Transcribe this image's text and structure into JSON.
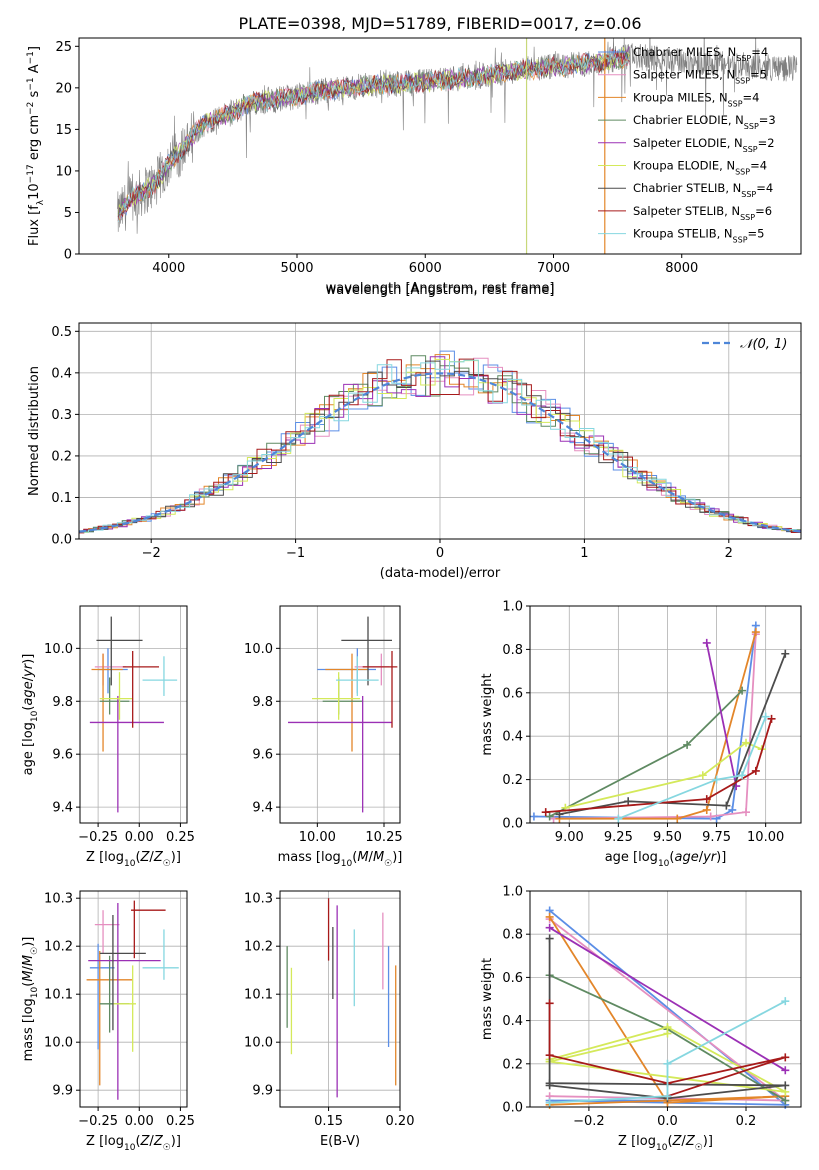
{
  "figure": {
    "title": "PLATE=0398, MJD=51789, FIBERID=0017, z=0.06"
  },
  "model_styles": [
    {
      "name": "Chabrier MILES",
      "nssp": 4,
      "color": "#5b8ee6"
    },
    {
      "name": "Salpeter MILES",
      "nssp": 5,
      "color": "#e58fc0"
    },
    {
      "name": "Kroupa MILES",
      "nssp": 4,
      "color": "#e3862a"
    },
    {
      "name": "Chabrier ELODIE",
      "nssp": 3,
      "color": "#5f8a62"
    },
    {
      "name": "Salpeter ELODIE",
      "nssp": 2,
      "color": "#9b30b5"
    },
    {
      "name": "Kroupa ELODIE",
      "nssp": 4,
      "color": "#d4e95a"
    },
    {
      "name": "Chabrier STELIB",
      "nssp": 4,
      "color": "#4c4c4c"
    },
    {
      "name": "Salpeter STELIB",
      "nssp": 6,
      "color": "#a71a1a"
    },
    {
      "name": "Kroupa STELIB",
      "nssp": 5,
      "color": "#86d7e0"
    }
  ],
  "chart_data": [
    {
      "id": "spectrum",
      "type": "line",
      "title": "PLATE=0398, MJD=51789, FIBERID=0017, z=0.06",
      "xlabel": "wavelength [Angstrom, rest frame]",
      "ylabel": "Flux [fλ10⁻¹⁷ erg cm⁻² s⁻¹ A⁻¹]",
      "xlim": [
        3300,
        8930
      ],
      "ylim": [
        0,
        26
      ],
      "xticks": [
        4000,
        5000,
        6000,
        7000,
        8000
      ],
      "yticks": [
        0,
        5,
        10,
        15,
        20,
        25
      ],
      "legend": "right",
      "continuum": {
        "x": [
          3600,
          3700,
          3800,
          3900,
          4000,
          4100,
          4200,
          4300,
          4400,
          4500,
          4600,
          4800,
          5000,
          5200,
          5400,
          5600,
          5800,
          6000,
          6200,
          6400,
          6600,
          6800,
          7000,
          7200,
          7400,
          7500,
          7600,
          7800,
          8000,
          8200,
          8400,
          8600,
          8900
        ],
        "y": [
          4.5,
          6.5,
          7.5,
          8.5,
          11,
          12.5,
          14.5,
          16,
          16.5,
          17,
          18,
          18.5,
          19,
          19.7,
          20,
          20.3,
          20.5,
          20.7,
          21,
          21.3,
          21.8,
          22.2,
          22.5,
          22.8,
          23.2,
          23.5,
          23.8,
          23.5,
          23.2,
          23.0,
          22.8,
          22.5,
          22.3
        ]
      },
      "dropouts": [
        {
          "x": 6790,
          "color": "#c8d87a"
        },
        {
          "x": 7400,
          "color": "#e3862a"
        }
      ]
    },
    {
      "id": "residuals",
      "type": "bar",
      "xlabel": "(data-model)/error",
      "ylabel": "Normed distribution",
      "xlim": [
        -2.5,
        2.5
      ],
      "ylim": [
        0,
        0.52
      ],
      "xticks": [
        -2,
        -1,
        0,
        1,
        2
      ],
      "yticks": [
        0.0,
        0.1,
        0.2,
        0.3,
        0.4,
        0.5
      ],
      "legend": "top-right",
      "gaussian_label": "𝒩(0, 1)",
      "bin_width": 0.1
    },
    {
      "id": "age-vs-z",
      "type": "scatter",
      "xlabel": "Z [log10(Z/Z☉)]",
      "ylabel": "age  [log10(age/yr)]",
      "xlim": [
        -0.36,
        0.29
      ],
      "ylim": [
        9.34,
        10.16
      ],
      "xticks": [
        -0.25,
        0.0,
        0.25
      ],
      "yticks": [
        9.4,
        9.6,
        9.8,
        10.0
      ],
      "points": [
        {
          "x": -0.19,
          "y": 9.92,
          "xerr": [
            0.06,
            0.12
          ],
          "yerr": [
            0.09,
            0.08
          ]
        },
        {
          "x": -0.22,
          "y": 9.93,
          "xerr": [
            0.05,
            0.14
          ],
          "yerr": [
            0.07,
            0.05
          ]
        },
        {
          "x": -0.22,
          "y": 9.92,
          "xerr": [
            0.07,
            0.12
          ],
          "yerr": [
            0.31,
            0.06
          ]
        },
        {
          "x": -0.18,
          "y": 9.8,
          "xerr": [
            0.06,
            0.12
          ],
          "yerr": [
            0.05,
            0.09
          ]
        },
        {
          "x": -0.13,
          "y": 9.72,
          "xerr": [
            0.17,
            0.28
          ],
          "yerr": [
            0.34,
            0.1
          ]
        },
        {
          "x": -0.12,
          "y": 9.81,
          "xerr": [
            0.12,
            0.08
          ],
          "yerr": [
            0.08,
            0.1
          ]
        },
        {
          "x": -0.17,
          "y": 10.03,
          "xerr": [
            0.09,
            0.19
          ],
          "yerr": [
            0.17,
            0.09
          ]
        },
        {
          "x": -0.04,
          "y": 9.93,
          "xerr": [
            0.06,
            0.16
          ],
          "yerr": [
            0.23,
            0.06
          ]
        },
        {
          "x": 0.15,
          "y": 9.88,
          "xerr": [
            0.13,
            0.08
          ],
          "yerr": [
            0.06,
            0.09
          ]
        }
      ]
    },
    {
      "id": "age-vs-mass",
      "type": "scatter",
      "xlabel": "mass [log10(M/M☉)]",
      "ylabel": "",
      "xlim": [
        9.86,
        10.31
      ],
      "ylim": [
        9.34,
        10.16
      ],
      "xticks": [
        10.0,
        10.25
      ],
      "yticks": [
        9.4,
        9.6,
        9.8,
        10.0
      ],
      "points": [
        {
          "x": 10.15,
          "y": 9.92,
          "xerr": [
            0.15,
            0.07
          ],
          "yerr": [
            0.09,
            0.08
          ]
        },
        {
          "x": 10.24,
          "y": 9.93,
          "xerr": [
            0.1,
            0.03
          ],
          "yerr": [
            0.07,
            0.05
          ]
        },
        {
          "x": 10.13,
          "y": 9.92,
          "xerr": [
            0.1,
            0.06
          ],
          "yerr": [
            0.31,
            0.06
          ]
        },
        {
          "x": 10.08,
          "y": 9.8,
          "xerr": [
            0.06,
            0.09
          ],
          "yerr": [
            0.05,
            0.09
          ]
        },
        {
          "x": 10.17,
          "y": 9.72,
          "xerr": [
            0.28,
            0.11
          ],
          "yerr": [
            0.34,
            0.1
          ]
        },
        {
          "x": 10.08,
          "y": 9.81,
          "xerr": [
            0.1,
            0.08
          ],
          "yerr": [
            0.08,
            0.1
          ]
        },
        {
          "x": 10.19,
          "y": 10.03,
          "xerr": [
            0.1,
            0.09
          ],
          "yerr": [
            0.17,
            0.09
          ]
        },
        {
          "x": 10.28,
          "y": 9.93,
          "xerr": [
            0.11,
            0.02
          ],
          "yerr": [
            0.23,
            0.06
          ]
        },
        {
          "x": 10.15,
          "y": 9.88,
          "xerr": [
            0.08,
            0.08
          ],
          "yerr": [
            0.06,
            0.09
          ]
        }
      ]
    },
    {
      "id": "weight-vs-age",
      "type": "line",
      "xlabel": "age  [log10(age/yr)]",
      "ylabel": "mass weight",
      "xlim": [
        8.8,
        10.18
      ],
      "ylim": [
        0,
        1.0
      ],
      "xticks": [
        9.0,
        9.25,
        9.5,
        9.75,
        10.0
      ],
      "yticks": [
        0.0,
        0.2,
        0.4,
        0.6,
        0.8,
        1.0
      ],
      "series": [
        {
          "style": 0,
          "x": [
            8.82,
            9.75,
            9.83,
            9.95
          ],
          "y": [
            0.03,
            0.02,
            0.06,
            0.91
          ]
        },
        {
          "style": 1,
          "x": [
            8.92,
            9.72,
            9.9,
            9.95
          ],
          "y": [
            0.02,
            0.03,
            0.05,
            0.87
          ]
        },
        {
          "style": 2,
          "x": [
            8.95,
            9.55,
            9.7,
            9.95
          ],
          "y": [
            0.02,
            0.02,
            0.06,
            0.88
          ]
        },
        {
          "style": 3,
          "x": [
            8.9,
            9.6,
            9.88
          ],
          "y": [
            0.03,
            0.36,
            0.61
          ]
        },
        {
          "style": 4,
          "x": [
            9.7,
            9.85
          ],
          "y": [
            0.83,
            0.17
          ]
        },
        {
          "style": 5,
          "x": [
            8.98,
            9.68,
            9.9,
            9.98
          ],
          "y": [
            0.07,
            0.22,
            0.37,
            0.34
          ]
        },
        {
          "style": 6,
          "x": [
            8.95,
            9.3,
            9.8,
            10.1
          ],
          "y": [
            0.04,
            0.1,
            0.08,
            0.78
          ]
        },
        {
          "style": 7,
          "x": [
            8.88,
            9.7,
            9.95,
            10.03
          ],
          "y": [
            0.05,
            0.11,
            0.24,
            0.48
          ]
        },
        {
          "style": 8,
          "x": [
            9.25,
            9.75,
            9.88,
            10.0
          ],
          "y": [
            0.02,
            0.2,
            0.22,
            0.49
          ]
        }
      ]
    },
    {
      "id": "mass-vs-z",
      "type": "scatter",
      "xlabel": "Z [log10(Z/Z☉)]",
      "ylabel": "mass [log10(M/M☉)]",
      "xlim": [
        -0.36,
        0.29
      ],
      "ylim": [
        9.865,
        10.315
      ],
      "xticks": [
        -0.25,
        0.0,
        0.25
      ],
      "yticks": [
        9.9,
        10.0,
        10.1,
        10.2,
        10.3
      ],
      "points": [
        {
          "x": -0.25,
          "y": 10.155,
          "xerr": [
            0.05,
            0.1
          ],
          "yerr": [
            0.17,
            0.05
          ]
        },
        {
          "x": -0.22,
          "y": 10.245,
          "xerr": [
            0.05,
            0.1
          ],
          "yerr": [
            0.06,
            0.03
          ]
        },
        {
          "x": -0.24,
          "y": 10.13,
          "xerr": [
            0.08,
            0.2
          ],
          "yerr": [
            0.22,
            0.06
          ]
        },
        {
          "x": -0.18,
          "y": 10.08,
          "xerr": [
            0.06,
            0.12
          ],
          "yerr": [
            0.06,
            0.1
          ]
        },
        {
          "x": -0.13,
          "y": 10.17,
          "xerr": [
            0.18,
            0.26
          ],
          "yerr": [
            0.29,
            0.12
          ]
        },
        {
          "x": -0.04,
          "y": 10.08,
          "xerr": [
            0.12,
            0.02
          ],
          "yerr": [
            0.1,
            0.08
          ]
        },
        {
          "x": -0.16,
          "y": 10.185,
          "xerr": [
            0.08,
            0.2
          ],
          "yerr": [
            0.16,
            0.08
          ]
        },
        {
          "x": -0.03,
          "y": 10.275,
          "xerr": [
            0.02,
            0.19
          ],
          "yerr": [
            0.1,
            0.02
          ]
        },
        {
          "x": 0.15,
          "y": 10.155,
          "xerr": [
            0.13,
            0.09
          ],
          "yerr": [
            0.025,
            0.08
          ]
        }
      ]
    },
    {
      "id": "mass-vs-ebv",
      "type": "scatter",
      "xlabel": "E(B-V)",
      "ylabel": "",
      "xlim": [
        0.116,
        0.2
      ],
      "ylim": [
        9.865,
        10.315
      ],
      "xticks": [
        0.15,
        0.2
      ],
      "yticks": [
        9.9,
        10.0,
        10.1,
        10.2,
        10.3
      ],
      "points": [
        {
          "x": 0.192,
          "y": 10.1,
          "yerr": [
            0.11,
            0.1
          ]
        },
        {
          "x": 0.188,
          "y": 10.19,
          "yerr": [
            0.08,
            0.08
          ]
        },
        {
          "x": 0.197,
          "y": 10.035,
          "yerr": [
            0.125,
            0.125
          ]
        },
        {
          "x": 0.121,
          "y": 10.115,
          "yerr": [
            0.085,
            0.085
          ]
        },
        {
          "x": 0.156,
          "y": 10.09,
          "yerr": [
            0.205,
            0.195
          ]
        },
        {
          "x": 0.124,
          "y": 10.065,
          "yerr": [
            0.09,
            0.09
          ]
        },
        {
          "x": 0.153,
          "y": 10.165,
          "yerr": [
            0.075,
            0.075
          ]
        },
        {
          "x": 0.15,
          "y": 10.235,
          "yerr": [
            0.065,
            0.065
          ]
        },
        {
          "x": 0.168,
          "y": 10.155,
          "yerr": [
            0.08,
            0.08
          ]
        }
      ]
    },
    {
      "id": "weight-vs-z",
      "type": "line",
      "xlabel": "Z [log10(Z/Z☉)]",
      "ylabel": "mass weight",
      "xlim": [
        -0.35,
        0.34
      ],
      "ylim": [
        0,
        1.0
      ],
      "xticks": [
        -0.2,
        0.0,
        0.2
      ],
      "yticks": [
        0.0,
        0.2,
        0.4,
        0.6,
        0.8,
        1.0
      ],
      "series": [
        {
          "style": 0,
          "x": [
            -0.3,
            0.3,
            -0.3,
            0.0
          ],
          "y": [
            0.91,
            0.01,
            0.03,
            0.03
          ]
        },
        {
          "style": 1,
          "x": [
            -0.3,
            0.3,
            -0.3
          ],
          "y": [
            0.87,
            0.03,
            0.05
          ]
        },
        {
          "style": 2,
          "x": [
            -0.3,
            0.0,
            0.3,
            -0.3
          ],
          "y": [
            0.88,
            0.02,
            0.05,
            0.01
          ]
        },
        {
          "style": 3,
          "x": [
            -0.3,
            0.0,
            0.3
          ],
          "y": [
            0.61,
            0.36,
            0.03
          ]
        },
        {
          "style": 4,
          "x": [
            -0.3,
            0.3
          ],
          "y": [
            0.83,
            0.17
          ]
        },
        {
          "style": 5,
          "x": [
            -0.3,
            0.0,
            0.3,
            -0.3,
            0.0
          ],
          "y": [
            0.22,
            0.37,
            0.07,
            0.21,
            0.34
          ]
        },
        {
          "style": 6,
          "x": [
            -0.3,
            -0.3,
            0.3,
            0.0,
            -0.3
          ],
          "y": [
            0.78,
            0.11,
            0.1,
            0.04,
            0.1
          ]
        },
        {
          "style": 7,
          "x": [
            -0.3,
            -0.3,
            0.0,
            0.3,
            0.0
          ],
          "y": [
            0.48,
            0.24,
            0.11,
            0.23,
            0.05
          ]
        },
        {
          "style": 8,
          "x": [
            -0.3,
            0.0,
            0.0,
            0.3
          ],
          "y": [
            0.02,
            0.05,
            0.2,
            0.49
          ]
        }
      ]
    }
  ]
}
